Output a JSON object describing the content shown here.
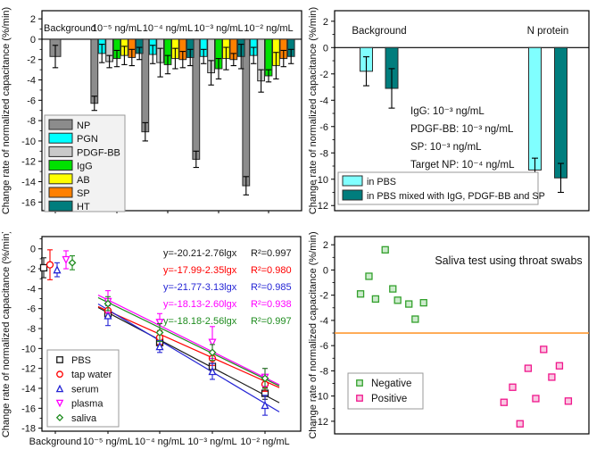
{
  "figure": {
    "y_axis_label": "Change rate of normalized capacitance (%/min)"
  },
  "chart_data": [
    {
      "id": "panel_a",
      "type": "bar",
      "ylabel": "Change rate of normalized capacitance (%/min)",
      "ylim": [
        -16.9,
        2
      ],
      "yticks": [
        2,
        0,
        -2,
        -4,
        -6,
        -8,
        -10,
        -12,
        -14,
        -16
      ],
      "grid": false,
      "legend_position": "bottom-left",
      "categories": [
        "Background",
        "10⁻⁵ ng/mL",
        "10⁻⁴ ng/mL",
        "10⁻³ ng/mL",
        "10⁻² ng/mL"
      ],
      "series": [
        {
          "name": "NP",
          "color": "#8C8C8C",
          "values": [
            -1.7,
            -6.3,
            -9.1,
            -11.8,
            -14.4
          ],
          "errors": [
            1.1,
            0.7,
            0.9,
            0.8,
            0.9
          ]
        },
        {
          "name": "PGN",
          "color": "#00FFFF",
          "values": [
            null,
            -1.4,
            -1.5,
            -1.7,
            -1.6
          ],
          "errors": [
            null,
            0.9,
            0.9,
            0.7,
            0.8
          ]
        },
        {
          "name": "PDGF-BB",
          "color": "#C9C9C9",
          "values": [
            null,
            -2.2,
            -2.3,
            -3.3,
            -4.1
          ],
          "errors": [
            null,
            0.6,
            1.4,
            1.2,
            1.1
          ]
        },
        {
          "name": "IgG",
          "color": "#00E100",
          "values": [
            null,
            -1.9,
            -2.5,
            -2.9,
            -3.6
          ],
          "errors": [
            null,
            0.8,
            0.9,
            1.0,
            0.6
          ]
        },
        {
          "name": "AB",
          "color": "#FFFF00",
          "values": [
            null,
            -1.6,
            -1.9,
            -1.9,
            -2.6
          ],
          "errors": [
            null,
            0.9,
            1.0,
            1.1,
            1.3
          ]
        },
        {
          "name": "SP",
          "color": "#FF8000",
          "values": [
            null,
            -1.8,
            -2.0,
            -2.0,
            -1.9
          ],
          "errors": [
            null,
            0.8,
            0.8,
            0.6,
            0.8
          ]
        },
        {
          "name": "HT",
          "color": "#007D7D",
          "values": [
            null,
            -1.4,
            -1.8,
            -1.7,
            -1.7
          ],
          "errors": [
            null,
            0.6,
            0.8,
            1.2,
            0.7
          ]
        }
      ]
    },
    {
      "id": "panel_b",
      "type": "bar",
      "ylabel": "Change rate of normalized capacitance (%/min)",
      "ylim": [
        -12.4,
        2
      ],
      "yticks": [
        2,
        0,
        -2,
        -4,
        -6,
        -8,
        -10,
        -12
      ],
      "grid": false,
      "legend_position": "bottom-left",
      "categories": [
        "Background",
        "N protein"
      ],
      "series": [
        {
          "name": "in PBS",
          "color": "#80FFFF",
          "values": [
            -1.8,
            -9.3
          ],
          "errors": [
            1.1,
            0.9
          ]
        },
        {
          "name": "in PBS mixed with IgG, PDGF-BB and SP",
          "color": "#007D7D",
          "values": [
            -3.1,
            -9.9
          ],
          "errors": [
            1.5,
            1.1
          ]
        }
      ],
      "annotations": [
        "IgG: 10⁻³ ng/mL",
        "PDGF-BB: 10⁻³ ng/mL",
        "SP: 10⁻³ ng/mL",
        "Target NP: 10⁻⁴ ng/mL"
      ]
    },
    {
      "id": "panel_c",
      "type": "scatter-line",
      "ylabel": "Change rate of normalized capacitance (%/min)",
      "ylim": [
        -18.3,
        1.2
      ],
      "yticks": [
        0,
        -2,
        -4,
        -6,
        -8,
        -10,
        -12,
        -14,
        -16,
        -18
      ],
      "grid": false,
      "legend_position": "bottom-left",
      "categories": [
        "Background",
        "10⁻⁵ ng/mL",
        "10⁻⁴ ng/mL",
        "10⁻³ ng/mL",
        "10⁻² ng/mL"
      ],
      "fit_lg_range": [
        -5,
        -2
      ],
      "series": [
        {
          "name": "PBS",
          "color": "#1A1A1A",
          "marker": "square",
          "values": [
            -1.9,
            -6.5,
            -9.4,
            -11.8,
            -14.5
          ],
          "errors": [
            1.0,
            0.5,
            0.5,
            0.6,
            0.6
          ],
          "fit": {
            "equation": "y=-20.21-2.76lgx",
            "r2": "R²=0.997",
            "intercept": -20.21,
            "slope": -2.76
          }
        },
        {
          "name": "tap water",
          "color": "#FF0000",
          "marker": "circle",
          "values": [
            -1.6,
            -6.2,
            -8.9,
            -11.0,
            -13.6
          ],
          "errors": [
            1.5,
            0.6,
            0.7,
            0.7,
            0.7
          ],
          "fit": {
            "equation": "y=-17.99-2.35lgx",
            "r2": "R²=0.980",
            "intercept": -17.99,
            "slope": -2.35
          }
        },
        {
          "name": "serum",
          "color": "#2525D5",
          "marker": "triangle-up",
          "values": [
            -2.1,
            -6.7,
            -9.8,
            -12.3,
            -15.7
          ],
          "errors": [
            0.7,
            1.0,
            0.6,
            0.8,
            1.0
          ],
          "fit": {
            "equation": "y=-21.77-3.13lgx",
            "r2": "R²=0.985",
            "intercept": -21.77,
            "slope": -3.13
          }
        },
        {
          "name": "plasma",
          "color": "#FF00FF",
          "marker": "triangle-down",
          "values": [
            -1.1,
            -5.3,
            -7.4,
            -9.4,
            -12.9
          ],
          "errors": [
            0.9,
            1.1,
            0.9,
            1.6,
            0.9
          ],
          "fit": {
            "equation": "y=-18.13-2.60lgx",
            "r2": "R²=0.938",
            "intercept": -18.13,
            "slope": -2.6
          }
        },
        {
          "name": "saliva",
          "color": "#1F8C1F",
          "marker": "diamond",
          "values": [
            -1.4,
            -5.5,
            -8.4,
            -10.4,
            -13.0
          ],
          "errors": [
            0.7,
            0.7,
            0.9,
            0.8,
            1.0
          ],
          "fit": {
            "equation": "y=-18.18-2.56lgx",
            "r2": "R²=0.997",
            "intercept": -18.18,
            "slope": -2.56
          }
        }
      ]
    },
    {
      "id": "panel_d",
      "type": "scatter",
      "title": "Saliva test using throat swabs",
      "ylabel": "Change rate of normalized capacitance (%/min)",
      "ylim": [
        -13,
        2.6
      ],
      "yticks": [
        2,
        0,
        -2,
        -4,
        -6,
        -8,
        -10,
        -12
      ],
      "grid": false,
      "legend_position": "middle-left",
      "threshold": {
        "y": -5,
        "color": "#FF9933"
      },
      "series": [
        {
          "name": "Negative",
          "edge_color": "#33A02C",
          "fill_color": "#CDEBCD",
          "marker": "square",
          "points": [
            [
              0.102,
              -1.9
            ],
            [
              0.135,
              -0.5
            ],
            [
              0.161,
              -2.3
            ],
            [
              0.199,
              1.6
            ],
            [
              0.229,
              -1.5
            ],
            [
              0.248,
              -2.4
            ],
            [
              0.292,
              -2.7
            ],
            [
              0.317,
              -3.9
            ],
            [
              0.35,
              -2.6
            ]
          ]
        },
        {
          "name": "Positive",
          "edge_color": "#F0168C",
          "fill_color": "#F9C9E2",
          "marker": "square",
          "points": [
            [
              0.666,
              -10.5
            ],
            [
              0.7,
              -9.3
            ],
            [
              0.729,
              -12.2
            ],
            [
              0.761,
              -7.8
            ],
            [
              0.791,
              -10.2
            ],
            [
              0.822,
              -6.3
            ],
            [
              0.854,
              -8.5
            ],
            [
              0.884,
              -7.6
            ],
            [
              0.919,
              -10.4
            ]
          ]
        }
      ]
    }
  ]
}
